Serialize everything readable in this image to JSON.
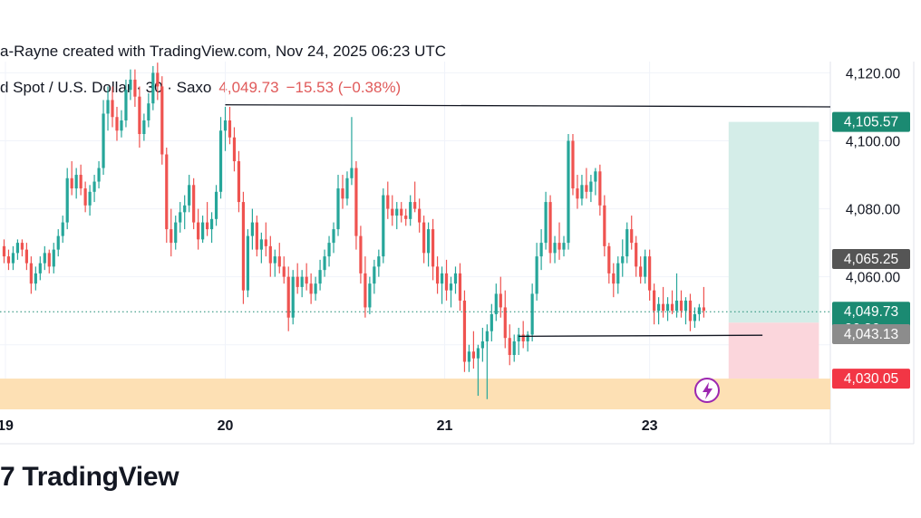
{
  "header": {
    "attribution": "a-Rayne created with TradingView.com, Nov 24, 2025 06:23 UTC",
    "symbol": "d Spot / U.S. Dollar · 30 · Saxo",
    "last_price": "4,049.73",
    "change": "−15.53 (−0.38%)"
  },
  "brand": {
    "text": "TradingView",
    "mark_glyph": "7",
    "logo_icon": "tradingview-logo-icon"
  },
  "colors": {
    "up": "#26a69a",
    "down": "#ef5350",
    "target_zone": "#d4ede8",
    "stop_zone": "#fbd6dc",
    "demand_zone": "#fde0b4",
    "label_green": "#1b8a72",
    "label_red": "#f23645",
    "label_dark": "#555555",
    "label_gray": "#8c8c8c",
    "lightning_icon": "#9c27b0"
  },
  "chart_data": {
    "type": "candlestick",
    "interval": "30",
    "y_axis": {
      "range": [
        4018,
        4125
      ],
      "tick_labels": [
        "4,120.00",
        "4,100.00",
        "4,080.00",
        "4,060.00"
      ],
      "tick_values": [
        4120,
        4100,
        4080,
        4060
      ],
      "position": "right"
    },
    "x_axis": {
      "tick_labels": [
        "19",
        "20",
        "21",
        "23"
      ],
      "tick_positions": [
        0.3,
        49,
        97.6,
        143
      ]
    },
    "grid": true,
    "price_labels": [
      {
        "text": "4,105.57",
        "value": 4105.57,
        "color": "label_green"
      },
      {
        "text": "4,065.25",
        "value": 4065.25,
        "color": "label_dark"
      },
      {
        "text": "4,049.73",
        "value": 4049.73,
        "color": "label_green",
        "sub": "06:36"
      },
      {
        "text": "4,043.13",
        "value": 4043.13,
        "color": "label_gray"
      },
      {
        "text": "4,030.05",
        "value": 4030.05,
        "color": "label_red"
      }
    ],
    "lines": [
      {
        "kind": "resistance",
        "from_bar": 49,
        "to_bar": 188,
        "y_start": 4110.6,
        "y_end": 4110.0
      },
      {
        "kind": "support",
        "from_bar": 114,
        "to_bar": 168,
        "y_start": 4042.5,
        "y_end": 4042.8
      },
      {
        "kind": "last_price",
        "value": 4049.73,
        "style": "dotted"
      }
    ],
    "zones": [
      {
        "kind": "target",
        "from_bar": 161,
        "to_bar": 180,
        "y_top": 4105.57,
        "y_bottom": 4046.5
      },
      {
        "kind": "stop",
        "from_bar": 161,
        "to_bar": 180,
        "y_top": 4046.5,
        "y_bottom": 4030.05
      },
      {
        "kind": "demand",
        "from_bar": -1,
        "to_bar": 188,
        "y_top": 4030.05,
        "y_bottom": 4021
      }
    ],
    "candles": [
      [
        4069,
        4071,
        4064,
        4066
      ],
      [
        4066,
        4068,
        4062,
        4064
      ],
      [
        4064,
        4069,
        4062,
        4067
      ],
      [
        4067,
        4071,
        4065,
        4070
      ],
      [
        4070,
        4071,
        4066,
        4068
      ],
      [
        4068,
        4070,
        4062,
        4064
      ],
      [
        4064,
        4066,
        4055,
        4058
      ],
      [
        4058,
        4063,
        4056,
        4061
      ],
      [
        4061,
        4066,
        4059,
        4064
      ],
      [
        4064,
        4069,
        4062,
        4067
      ],
      [
        4067,
        4068,
        4061,
        4063
      ],
      [
        4063,
        4070,
        4061,
        4068
      ],
      [
        4068,
        4074,
        4066,
        4072
      ],
      [
        4072,
        4078,
        4070,
        4076
      ],
      [
        4076,
        4092,
        4074,
        4089
      ],
      [
        4089,
        4094,
        4084,
        4086
      ],
      [
        4086,
        4092,
        4083,
        4090
      ],
      [
        4090,
        4093,
        4084,
        4086
      ],
      [
        4086,
        4088,
        4079,
        4081
      ],
      [
        4081,
        4087,
        4078,
        4085
      ],
      [
        4085,
        4090,
        4082,
        4088
      ],
      [
        4088,
        4094,
        4086,
        4092
      ],
      [
        4092,
        4112,
        4090,
        4108
      ],
      [
        4108,
        4116,
        4103,
        4112
      ],
      [
        4112,
        4116,
        4104,
        4107
      ],
      [
        4107,
        4110,
        4100,
        4103
      ],
      [
        4103,
        4109,
        4101,
        4106
      ],
      [
        4106,
        4118,
        4104,
        4115
      ],
      [
        4115,
        4121,
        4112,
        4118
      ],
      [
        4118,
        4121,
        4110,
        4113
      ],
      [
        4113,
        4116,
        4098,
        4102
      ],
      [
        4102,
        4108,
        4100,
        4106
      ],
      [
        4106,
        4114,
        4104,
        4111
      ],
      [
        4111,
        4122,
        4109,
        4120
      ],
      [
        4120,
        4123,
        4112,
        4116
      ],
      [
        4116,
        4119,
        4093,
        4096
      ],
      [
        4096,
        4098,
        4070,
        4074
      ],
      [
        4074,
        4080,
        4066,
        4070
      ],
      [
        4070,
        4078,
        4068,
        4076
      ],
      [
        4076,
        4082,
        4073,
        4079
      ],
      [
        4079,
        4084,
        4074,
        4081
      ],
      [
        4081,
        4090,
        4079,
        4087
      ],
      [
        4087,
        4089,
        4074,
        4076
      ],
      [
        4076,
        4080,
        4068,
        4071
      ],
      [
        4071,
        4078,
        4070,
        4076
      ],
      [
        4076,
        4082,
        4072,
        4074
      ],
      [
        4074,
        4079,
        4070,
        4077
      ],
      [
        4077,
        4087,
        4075,
        4085
      ],
      [
        4085,
        4107,
        4083,
        4103
      ],
      [
        4103,
        4110,
        4097,
        4106
      ],
      [
        4106,
        4110,
        4099,
        4101
      ],
      [
        4101,
        4104,
        4091,
        4094
      ],
      [
        4094,
        4097,
        4079,
        4082
      ],
      [
        4082,
        4085,
        4052,
        4056
      ],
      [
        4056,
        4074,
        4054,
        4072
      ],
      [
        4072,
        4080,
        4068,
        4076
      ],
      [
        4076,
        4078,
        4066,
        4068
      ],
      [
        4068,
        4073,
        4064,
        4071
      ],
      [
        4071,
        4076,
        4066,
        4069
      ],
      [
        4069,
        4072,
        4060,
        4064
      ],
      [
        4064,
        4068,
        4060,
        4066
      ],
      [
        4066,
        4070,
        4061,
        4063
      ],
      [
        4063,
        4066,
        4058,
        4060
      ],
      [
        4060,
        4063,
        4044,
        4048
      ],
      [
        4048,
        4062,
        4046,
        4060
      ],
      [
        4060,
        4064,
        4055,
        4057
      ],
      [
        4057,
        4062,
        4054,
        4060
      ],
      [
        4060,
        4064,
        4056,
        4058
      ],
      [
        4058,
        4061,
        4052,
        4055
      ],
      [
        4055,
        4060,
        4053,
        4058
      ],
      [
        4058,
        4065,
        4056,
        4062
      ],
      [
        4062,
        4068,
        4060,
        4066
      ],
      [
        4066,
        4072,
        4063,
        4070
      ],
      [
        4070,
        4076,
        4067,
        4074
      ],
      [
        4074,
        4090,
        4072,
        4086
      ],
      [
        4086,
        4090,
        4080,
        4083
      ],
      [
        4083,
        4091,
        4081,
        4089
      ],
      [
        4089,
        4107,
        4087,
        4092
      ],
      [
        4092,
        4094,
        4068,
        4072
      ],
      [
        4072,
        4075,
        4058,
        4061
      ],
      [
        4061,
        4066,
        4048,
        4051
      ],
      [
        4051,
        4060,
        4049,
        4058
      ],
      [
        4058,
        4065,
        4055,
        4063
      ],
      [
        4063,
        4068,
        4060,
        4066
      ],
      [
        4066,
        4086,
        4064,
        4084
      ],
      [
        4084,
        4088,
        4077,
        4080
      ],
      [
        4080,
        4084,
        4075,
        4078
      ],
      [
        4078,
        4082,
        4074,
        4080
      ],
      [
        4080,
        4082,
        4076,
        4078
      ],
      [
        4078,
        4080,
        4075,
        4077
      ],
      [
        4077,
        4084,
        4075,
        4082
      ],
      [
        4082,
        4088,
        4079,
        4080
      ],
      [
        4080,
        4083,
        4073,
        4076
      ],
      [
        4076,
        4078,
        4064,
        4067
      ],
      [
        4067,
        4076,
        4063,
        4074
      ],
      [
        4074,
        4077,
        4059,
        4063
      ],
      [
        4063,
        4066,
        4055,
        4058
      ],
      [
        4058,
        4063,
        4052,
        4061
      ],
      [
        4061,
        4065,
        4053,
        4056
      ],
      [
        4056,
        4060,
        4051,
        4058
      ],
      [
        4058,
        4063,
        4055,
        4061
      ],
      [
        4061,
        4064,
        4050,
        4053
      ],
      [
        4053,
        4056,
        4032,
        4035
      ],
      [
        4035,
        4040,
        4032,
        4038
      ],
      [
        4038,
        4044,
        4033,
        4036
      ],
      [
        4036,
        4040,
        4025,
        4039
      ],
      [
        4039,
        4045,
        4035,
        4041
      ],
      [
        4041,
        4046,
        4024,
        4044
      ],
      [
        4044,
        4052,
        4041,
        4049
      ],
      [
        4049,
        4058,
        4047,
        4055
      ],
      [
        4055,
        4060,
        4048,
        4051
      ],
      [
        4051,
        4056,
        4039,
        4042
      ],
      [
        4042,
        4046,
        4034,
        4037
      ],
      [
        4037,
        4043,
        4035,
        4041
      ],
      [
        4041,
        4045,
        4037,
        4043
      ],
      [
        4043,
        4047,
        4039,
        4041
      ],
      [
        4041,
        4044,
        4038,
        4043
      ],
      [
        4043,
        4058,
        4041,
        4055
      ],
      [
        4055,
        4070,
        4053,
        4066
      ],
      [
        4066,
        4074,
        4062,
        4070
      ],
      [
        4070,
        4085,
        4068,
        4082
      ],
      [
        4082,
        4084,
        4064,
        4067
      ],
      [
        4067,
        4072,
        4064,
        4070
      ],
      [
        4070,
        4076,
        4065,
        4068
      ],
      [
        4068,
        4072,
        4066,
        4070
      ],
      [
        4070,
        4102,
        4068,
        4100
      ],
      [
        4100,
        4102,
        4084,
        4086
      ],
      [
        4086,
        4090,
        4080,
        4083
      ],
      [
        4083,
        4090,
        4081,
        4087
      ],
      [
        4087,
        4092,
        4083,
        4085
      ],
      [
        4085,
        4090,
        4082,
        4088
      ],
      [
        4088,
        4092,
        4084,
        4091
      ],
      [
        4091,
        4093,
        4078,
        4081
      ],
      [
        4081,
        4084,
        4066,
        4069
      ],
      [
        4069,
        4070,
        4058,
        4061
      ],
      [
        4061,
        4064,
        4054,
        4058
      ],
      [
        4058,
        4066,
        4055,
        4064
      ],
      [
        4064,
        4071,
        4060,
        4066
      ],
      [
        4066,
        4076,
        4064,
        4074
      ],
      [
        4074,
        4078,
        4068,
        4070
      ],
      [
        4070,
        4072,
        4060,
        4063
      ],
      [
        4063,
        4066,
        4058,
        4060
      ],
      [
        4060,
        4068,
        4058,
        4066
      ],
      [
        4066,
        4068,
        4053,
        4056
      ],
      [
        4056,
        4058,
        4046,
        4050
      ],
      [
        4050,
        4054,
        4046,
        4052
      ],
      [
        4052,
        4057,
        4048,
        4050
      ],
      [
        4050,
        4054,
        4047,
        4052
      ],
      [
        4052,
        4056,
        4049,
        4050
      ],
      [
        4050,
        4061,
        4048,
        4053
      ],
      [
        4053,
        4056,
        4048,
        4050
      ],
      [
        4050,
        4054,
        4046,
        4053
      ],
      [
        4053,
        4055,
        4044,
        4047
      ],
      [
        4047,
        4051,
        4045,
        4049
      ],
      [
        4049,
        4052,
        4047,
        4051
      ],
      [
        4051,
        4057,
        4048,
        4050
      ]
    ]
  }
}
